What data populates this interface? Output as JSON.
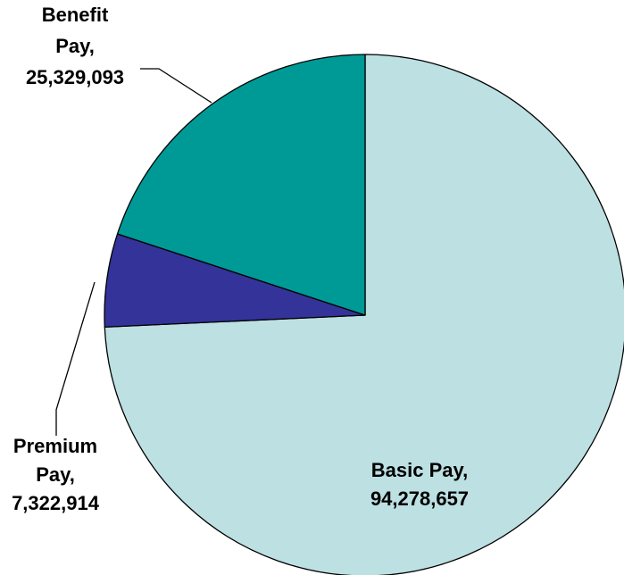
{
  "chart_data": {
    "type": "pie",
    "title": "",
    "slices": [
      {
        "label": "Basic Pay",
        "value": 94278657,
        "label_lines": [
          "Basic Pay,",
          "94,278,657"
        ],
        "color": "#bde0e2"
      },
      {
        "label": "Premium Pay",
        "value": 7322914,
        "label_lines": [
          "Premium",
          "Pay,",
          "7,322,914"
        ],
        "color": "#333399"
      },
      {
        "label": "Benefit Pay",
        "value": 25329093,
        "label_lines": [
          "Benefit",
          "Pay,",
          "25,329,093"
        ],
        "color": "#009a96"
      }
    ],
    "start_angle": "12 o'clock",
    "direction": "clockwise",
    "legend": "none"
  }
}
